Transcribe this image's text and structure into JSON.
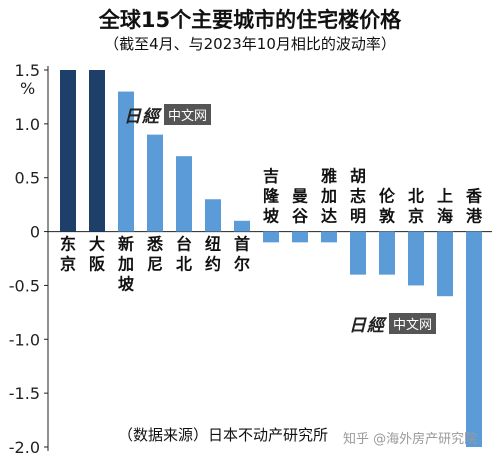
{
  "title": "全球15个主要城市的住宅楼价格",
  "subtitle": "（截至4月、与2023年10月相比的波动率）",
  "source_note": "（数据来源）日本不动产研究所",
  "watermark": {
    "logo": "日經",
    "tag": "中文网"
  },
  "credit": "知乎 @海外房产研究院",
  "chart_data": {
    "type": "bar",
    "title": "全球15个主要城市的住宅楼价格",
    "ylabel": "%",
    "ylim": [
      -2.0,
      1.5
    ],
    "yticks": [
      "1.5",
      "1.0",
      "0.5",
      "0",
      "-0.5",
      "-1.0",
      "-1.5",
      "-2.0"
    ],
    "categories": [
      "东京",
      "大阪",
      "新加坡",
      "悉尼",
      "台北",
      "纽约",
      "首尔",
      "吉隆坡",
      "曼谷",
      "雅加达",
      "胡志明",
      "伦敦",
      "北京",
      "上海",
      "香港"
    ],
    "values": [
      1.5,
      1.5,
      1.3,
      0.9,
      0.7,
      0.3,
      0.1,
      -0.1,
      -0.1,
      -0.1,
      -0.4,
      -0.4,
      -0.5,
      -0.6,
      -2.0
    ],
    "colors": [
      "#1f3f6b",
      "#1f3f6b",
      "#5b9bd8",
      "#5b9bd8",
      "#5b9bd8",
      "#5b9bd8",
      "#5b9bd8",
      "#5b9bd8",
      "#5b9bd8",
      "#5b9bd8",
      "#5b9bd8",
      "#5b9bd8",
      "#5b9bd8",
      "#5b9bd8",
      "#5b9bd8"
    ],
    "grid": false
  }
}
